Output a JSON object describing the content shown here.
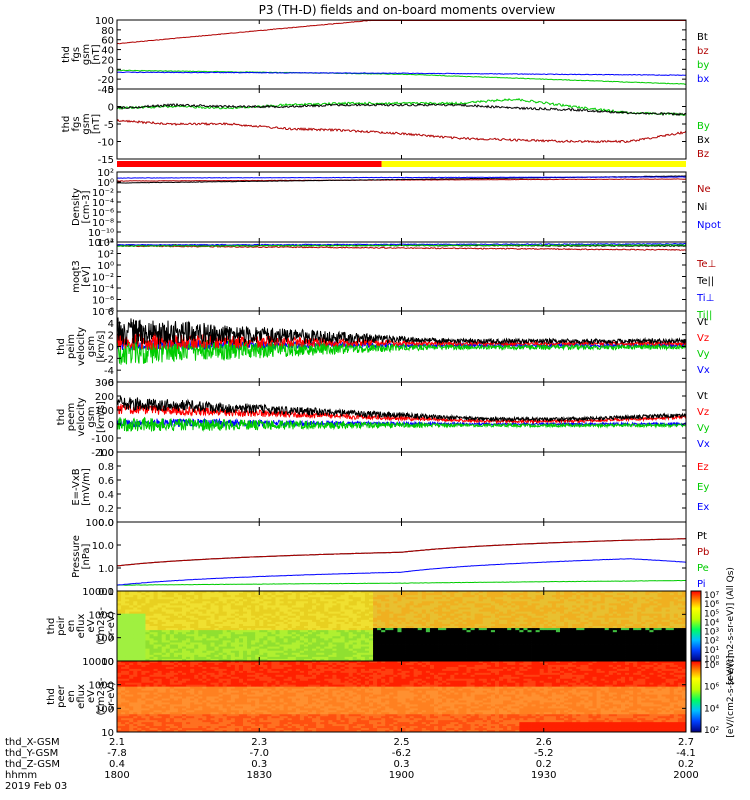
{
  "title": "P3 (TH-D) fields and on-board moments overview",
  "colors": {
    "red": "#ff0000",
    "darkred": "#b00000",
    "green": "#00cc00",
    "blue": "#0000ff",
    "black": "#000000",
    "yellow": "#ffff00"
  },
  "chart_data": [
    {
      "id": "fgs-gsm",
      "type": "line",
      "ylabel": [
        "thd",
        "fgs",
        "gsm",
        "[nT]"
      ],
      "ylim": [
        -40,
        100
      ],
      "yticks": [
        "100",
        "80",
        "60",
        "40",
        "20",
        "0",
        "-20",
        "-40"
      ],
      "series": [
        {
          "name": "Bt",
          "color": "#000000",
          "x": [
            0,
            50,
            100
          ],
          "values": [
            52,
            105,
            160
          ]
        },
        {
          "name": "bz",
          "color": "#b00000",
          "x": [
            0,
            50,
            100
          ],
          "values": [
            52,
            105,
            160
          ]
        },
        {
          "name": "by",
          "color": "#00cc00",
          "x": [
            0,
            50,
            100
          ],
          "values": [
            -2,
            -10,
            -30
          ]
        },
        {
          "name": "bx",
          "color": "#0000ff",
          "x": [
            0,
            50,
            100
          ],
          "values": [
            -6,
            -8,
            -12
          ]
        }
      ]
    },
    {
      "id": "fgs-gsm-dsl",
      "type": "line",
      "ylabel": [
        "thd",
        "fgs",
        "gsm",
        "[nT]"
      ],
      "ylim": [
        -17,
        5
      ],
      "yticks": [
        "5",
        "0",
        "-5",
        "-10",
        "-15"
      ],
      "series": [
        {
          "name": "By",
          "color": "#00cc00",
          "x": [
            0,
            10,
            20,
            30,
            40,
            50,
            60,
            70,
            80,
            90,
            100
          ],
          "values": [
            -1,
            -0.5,
            -1,
            0,
            0.5,
            0.5,
            0.5,
            1.8,
            -0.5,
            -2.5,
            -3
          ]
        },
        {
          "name": "Bx",
          "color": "#000000",
          "x": [
            0,
            10,
            20,
            30,
            40,
            50,
            60,
            70,
            80,
            90,
            100
          ],
          "values": [
            -1,
            0,
            -0.5,
            -0.5,
            0,
            0,
            0,
            -1,
            -1.5,
            -2.5,
            -3
          ]
        },
        {
          "name": "Bz",
          "color": "#b00000",
          "x": [
            0,
            10,
            20,
            30,
            40,
            50,
            60,
            70,
            80,
            90,
            100
          ],
          "values": [
            -5,
            -6,
            -6,
            -7.5,
            -8,
            -9,
            -10.5,
            -11,
            -11.5,
            -11.5,
            -8.5
          ]
        }
      ]
    },
    {
      "id": "density",
      "type": "line",
      "ylabel": [
        "Density",
        "[cm-3]"
      ],
      "yticks": [
        "10²",
        "10⁰",
        "10⁻²",
        "10⁻⁴",
        "10⁻⁶",
        "10⁻⁸",
        "10⁻¹⁰",
        "10⁻¹²"
      ],
      "series": [
        {
          "name": "Ne",
          "color": "#b00000"
        },
        {
          "name": "Ni",
          "color": "#000000"
        },
        {
          "name": "Npot",
          "color": "#0000ff"
        }
      ]
    },
    {
      "id": "temperature",
      "type": "line",
      "ylabel": [
        "moqt3",
        "[eV]"
      ],
      "yticks": [
        "10⁴",
        "10²",
        "10⁰",
        "10⁻²",
        "10⁻⁴",
        "10⁻⁶",
        "10⁻⁸"
      ],
      "series": [
        {
          "name": "Te⊥",
          "color": "#b00000"
        },
        {
          "name": "Te||",
          "color": "#000000"
        },
        {
          "name": "Ti⊥",
          "color": "#0000ff"
        },
        {
          "name": "Ti||",
          "color": "#00cc00"
        }
      ]
    },
    {
      "id": "peim-velocity",
      "type": "line",
      "ylabel": [
        "thd",
        "peim",
        "velocity",
        "gsm",
        "[km/s]"
      ],
      "ylim": [
        -6,
        6
      ],
      "yticks": [
        "6",
        "4",
        "2",
        "0",
        "-2",
        "-4",
        "-6"
      ],
      "series": [
        {
          "name": "Vt",
          "color": "#000000"
        },
        {
          "name": "Vz",
          "color": "#ff0000"
        },
        {
          "name": "Vy",
          "color": "#00cc00"
        },
        {
          "name": "Vx",
          "color": "#0000ff"
        }
      ]
    },
    {
      "id": "peem-velocity",
      "type": "line",
      "ylabel": [
        "thd",
        "peem",
        "velocity",
        "gsm",
        "[km/s]"
      ],
      "ylim": [
        -200,
        300
      ],
      "yticks": [
        "300",
        "200",
        "100",
        "0",
        "-100",
        "-200"
      ],
      "series": [
        {
          "name": "Vt",
          "color": "#000000"
        },
        {
          "name": "Vz",
          "color": "#ff0000"
        },
        {
          "name": "Vy",
          "color": "#00cc00"
        },
        {
          "name": "Vx",
          "color": "#0000ff"
        }
      ]
    },
    {
      "id": "efield",
      "type": "line",
      "ylabel": [
        "E=-VxB",
        "[mV/m]"
      ],
      "ylim": [
        0,
        1
      ],
      "yticks": [
        "1.0",
        "0.8",
        "0.6",
        "0.4",
        "0.2",
        "0.0"
      ],
      "series": [
        {
          "name": "Ez",
          "color": "#ff0000"
        },
        {
          "name": "Ey",
          "color": "#00cc00"
        },
        {
          "name": "Ex",
          "color": "#0000ff"
        }
      ]
    },
    {
      "id": "pressure",
      "type": "line",
      "ylabel": [
        "Pressure",
        "[nPa]"
      ],
      "yticks": [
        "100.0",
        "10.0",
        "1.0",
        "0.1"
      ],
      "series": [
        {
          "name": "Pt",
          "color": "#000000",
          "x": [
            0,
            50,
            100
          ],
          "values": [
            1.0,
            4.5,
            20
          ]
        },
        {
          "name": "Pb",
          "color": "#b00000",
          "x": [
            0,
            50,
            100
          ],
          "values": [
            1.0,
            4.5,
            20
          ]
        },
        {
          "name": "Pe",
          "color": "#00cc00",
          "x": [
            0,
            50,
            100
          ],
          "values": [
            0.12,
            0.15,
            0.2
          ]
        },
        {
          "name": "Pi",
          "color": "#0000ff",
          "x": [
            0,
            50,
            75,
            90,
            100
          ],
          "values": [
            0.12,
            0.5,
            1.5,
            2.2,
            1.5
          ]
        }
      ]
    },
    {
      "id": "peir-spectrogram",
      "type": "heatmap",
      "ylabel": [
        "thd",
        "peir",
        "en",
        "eflux",
        "eV",
        "(cm2-s-",
        "sr-eV)"
      ],
      "yticks": [
        "10000",
        "1000",
        "100",
        "10"
      ]
    },
    {
      "id": "peer-spectrogram",
      "type": "heatmap",
      "ylabel": [
        "thd",
        "peer",
        "en",
        "eflux",
        "eV",
        "(cm2-s-",
        "sr-eV)"
      ],
      "yticks": [
        "10000",
        "1000",
        "100",
        "10"
      ]
    }
  ],
  "colorbars": [
    {
      "ticks": [
        "10⁷",
        "10⁶",
        "10⁵",
        "10⁴",
        "10³",
        "10²",
        "10¹",
        "10⁰"
      ],
      "label": "[eV/(cm2-s-sr-eV)] (All Qs)"
    },
    {
      "ticks": [
        "10⁸",
        "10⁶",
        "10⁴",
        "10²"
      ],
      "label": "[eV/(cm2-s-sr-eV)]"
    }
  ],
  "xaxis": {
    "rows": [
      {
        "label": "thd_X-GSM",
        "values": [
          "2.1",
          "2.3",
          "2.5",
          "2.6",
          "2.7"
        ]
      },
      {
        "label": "thd_Y-GSM",
        "values": [
          "-7.8",
          "-7.0",
          "-6.2",
          "-5.2",
          "-4.1"
        ]
      },
      {
        "label": "thd_Z-GSM",
        "values": [
          "0.4",
          "0.3",
          "0.3",
          "0.2",
          "0.2"
        ]
      },
      {
        "label": "hhmm",
        "values": [
          "1800",
          "1830",
          "1900",
          "1930",
          "2000"
        ]
      }
    ],
    "date": "2019 Feb 03"
  }
}
